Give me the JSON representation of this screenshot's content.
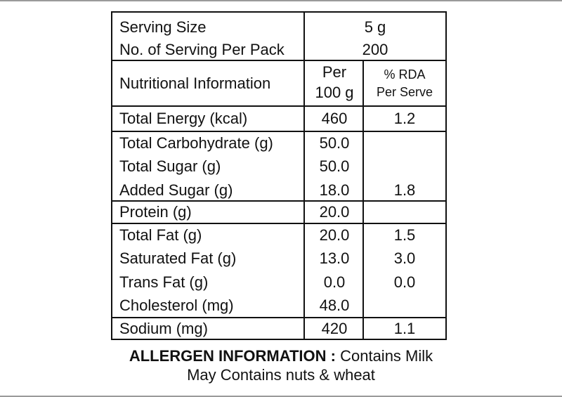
{
  "serving": {
    "size_label": "Serving Size",
    "size_value": "5 g",
    "per_pack_label": "No. of Serving Per Pack",
    "per_pack_value": "200"
  },
  "header": {
    "nutrition_label": "Nutritional Information",
    "per100_line1": "Per",
    "per100_line2": "100 g",
    "rda_line1": "% RDA",
    "rda_line2": "Per Serve"
  },
  "groups": [
    {
      "rows": [
        {
          "name": "Total Energy (kcal)",
          "per100": "460",
          "rda": "1.2"
        }
      ]
    },
    {
      "rows": [
        {
          "name": "Total Carbohydrate (g)",
          "per100": "50.0",
          "rda": ""
        },
        {
          "name": "Total Sugar (g)",
          "per100": "50.0",
          "rda": ""
        },
        {
          "name": "Added Sugar (g)",
          "per100": "18.0",
          "rda": "1.8"
        }
      ]
    },
    {
      "rows": [
        {
          "name": "Protein (g)",
          "per100": "20.0",
          "rda": ""
        }
      ]
    },
    {
      "rows": [
        {
          "name": "Total Fat (g)",
          "per100": "20.0",
          "rda": "1.5"
        },
        {
          "name": "Saturated Fat (g)",
          "per100": "13.0",
          "rda": "3.0"
        },
        {
          "name": "Trans Fat (g)",
          "per100": "0.0",
          "rda": "0.0"
        },
        {
          "name": "Cholesterol (mg)",
          "per100": "48.0",
          "rda": ""
        }
      ]
    },
    {
      "rows": [
        {
          "name": "Sodium (mg)",
          "per100": "420",
          "rda": "1.1"
        }
      ]
    }
  ],
  "allergen": {
    "heading": "ALLERGEN INFORMATION :",
    "contains": "Contains Milk",
    "may_contain": "May Contains nuts & wheat"
  }
}
